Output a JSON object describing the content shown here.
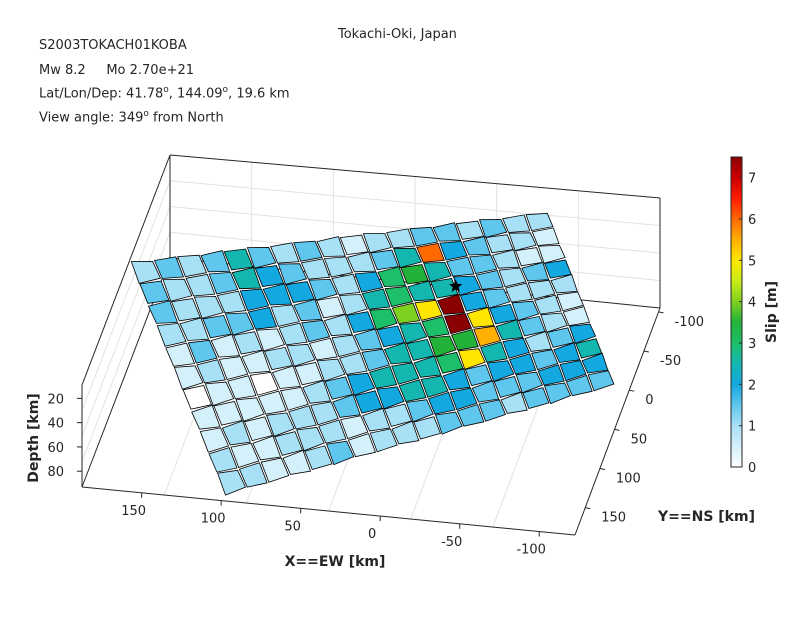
{
  "header": {
    "event_name": "S2003TOKACH01KOBA",
    "region": "Tokachi-Oki, Japan",
    "magnitude": "Mw 8.2",
    "moment": "Mo 2.70e+21",
    "location_prefix": "Lat/Lon/Dep: 41.78",
    "location_lon": ", 144.09",
    "location_suffix": ", 19.6 km",
    "view_prefix": "View angle: 349",
    "view_suffix": " from North",
    "degree_mark": "o"
  },
  "colors": {
    "colormap": [
      "#ffffff",
      "#d4f0fb",
      "#a8e0f6",
      "#5fc6ee",
      "#13a8e0",
      "#13b7b0",
      "#1dbf6a",
      "#22b23a",
      "#7fd11f",
      "#c9ec16",
      "#ffe600",
      "#ffb000",
      "#ff6a00",
      "#ff1a00",
      "#cc0000",
      "#8b0000"
    ],
    "edge": "#000000",
    "grid": "#e1e1e1",
    "box": "#262626"
  },
  "chart_data": {
    "type": "3d-fault-slip-patches",
    "x_axis": {
      "label": "X==EW [km]",
      "ticks": [
        "150",
        "100",
        "50",
        "0",
        "-50",
        "-100"
      ]
    },
    "y_axis": {
      "label": "Y==NS [km]",
      "ticks": [
        "-100",
        "-50",
        "0",
        "50",
        "100",
        "150"
      ]
    },
    "z_axis": {
      "label": "Depth [km]",
      "ticks": [
        "20",
        "40",
        "60",
        "80"
      ]
    },
    "colorbar": {
      "label": "Slip [m]",
      "ticks": [
        "0",
        "1",
        "2",
        "3",
        "4",
        "5",
        "6",
        "7"
      ],
      "range": [
        0,
        7.5
      ]
    },
    "grid_shape": {
      "strike_cells": 18,
      "dip_cells": 11
    },
    "hypocenter": {
      "marker": "star",
      "strike_index": 12.5,
      "dip_index": 3
    },
    "slip_m": [
      [
        1.0,
        1.3,
        1.0,
        1.4,
        2.3,
        1.4,
        1.0,
        1.3,
        1.0,
        0.5,
        1.0,
        1.2,
        1.5,
        1.3,
        0.8,
        1.5,
        0.8,
        1.2
      ],
      [
        1.3,
        1.1,
        1.0,
        1.6,
        2.4,
        2.1,
        1.3,
        1.0,
        1.2,
        0.8,
        1.3,
        2.3,
        5.8,
        2.2,
        1.3,
        1.0,
        1.2,
        0.6
      ],
      [
        1.6,
        1.2,
        0.9,
        1.1,
        1.9,
        2.2,
        2.0,
        1.5,
        1.0,
        2.1,
        3.2,
        3.4,
        2.3,
        1.6,
        1.3,
        1.0,
        0.5,
        0.6
      ],
      [
        1.1,
        0.9,
        1.3,
        1.7,
        2.1,
        1.2,
        1.6,
        0.6,
        1.1,
        2.6,
        3.0,
        2.6,
        2.7,
        2.0,
        1.6,
        1.2,
        1.4,
        2.2
      ],
      [
        0.5,
        1.4,
        0.6,
        0.9,
        0.7,
        1.1,
        1.5,
        1.2,
        2.0,
        3.1,
        3.9,
        5.0,
        7.4,
        2.1,
        1.4,
        1.1,
        1.2,
        0.9
      ],
      [
        0.6,
        0.8,
        0.5,
        0.4,
        0.9,
        0.8,
        0.6,
        1.2,
        1.4,
        1.8,
        2.6,
        3.2,
        7.5,
        4.9,
        2.2,
        1.4,
        0.9,
        0.7
      ],
      [
        0.2,
        0.5,
        0.3,
        0.2,
        0.4,
        0.6,
        0.8,
        1.1,
        1.5,
        2.3,
        2.4,
        3.6,
        3.4,
        5.6,
        2.3,
        1.6,
        1.0,
        0.7
      ],
      [
        0.3,
        0.5,
        0.4,
        0.5,
        0.6,
        0.9,
        1.3,
        1.8,
        2.3,
        2.6,
        2.5,
        2.9,
        5.1,
        2.3,
        2.0,
        1.2,
        1.4,
        2.1
      ],
      [
        0.6,
        0.8,
        0.5,
        0.9,
        0.8,
        1.1,
        1.6,
        2.0,
        2.1,
        2.4,
        2.5,
        2.2,
        1.6,
        2.2,
        1.9,
        1.5,
        2.1,
        2.3
      ],
      [
        0.9,
        0.5,
        0.7,
        0.8,
        1.0,
        1.2,
        0.6,
        0.9,
        1.1,
        1.5,
        1.9,
        2.0,
        1.7,
        1.4,
        1.6,
        1.8,
        2.0,
        2.1
      ],
      [
        1.0,
        0.8,
        0.6,
        0.7,
        0.9,
        1.3,
        0.5,
        0.8,
        1.0,
        1.2,
        1.4,
        1.6,
        1.3,
        1.2,
        1.3,
        1.4,
        1.5,
        1.6
      ]
    ]
  }
}
